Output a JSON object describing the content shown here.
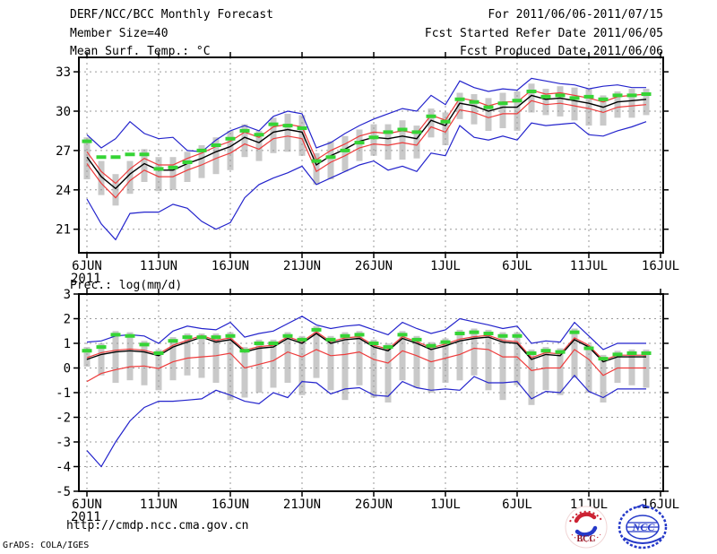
{
  "header": {
    "title": "DERF/NCC/BCC Monthly Forecast",
    "member_size": "Member Size=40",
    "temp_panel_label": "Mean Surf. Temp.: °C",
    "for_range": "For 2011/06/06-2011/07/15",
    "fcst_started": "Fcst Started Refer Date 2011/06/05",
    "fcst_produced": "Fcst Produced Date 2011/06/06",
    "prec_panel_label": "Prec.: log(mm/d)"
  },
  "footer": {
    "url": "http://cmdp.ncc.cma.gov.cn",
    "grads_credit": "GrADS: COLA/IGES",
    "bcc_logo_text": "BCC",
    "ncc_logo_text": "NCC"
  },
  "colors": {
    "envelope_blue": "#2323cc",
    "std_red": "#ee3b3b",
    "mean_black": "#000000",
    "obs_green": "#35d435",
    "spread_gray": "#c9c9c9",
    "grid_gray": "#9a9a9a",
    "axis_black": "#000000",
    "logo_red": "#cc2233",
    "logo_blue": "#2438c8"
  },
  "chart_data": [
    {
      "id": "temp",
      "type": "line",
      "title": "Mean Surf. Temp.: °C",
      "x_year_label": "2011",
      "x_tick_labels": [
        "6JUN",
        "11JUN",
        "16JUN",
        "21JUN",
        "26JUN",
        "1JUL",
        "6JUL",
        "11JUL",
        "16JUL"
      ],
      "x_tick_positions": [
        0,
        5,
        10,
        15,
        20,
        25,
        30,
        35,
        40
      ],
      "y_ticks": [
        33,
        30,
        27,
        24,
        21
      ],
      "y_grid": [
        33,
        30,
        27,
        24,
        21
      ],
      "ylim": [
        19.2,
        34.1
      ],
      "grid": true,
      "legend": "none",
      "series": [
        {
          "name": "ensemble-max",
          "color": "#2323cc",
          "style": "line",
          "values": [
            28.2,
            27.2,
            27.9,
            29.2,
            28.3,
            27.9,
            28.0,
            27.0,
            26.9,
            27.8,
            28.5,
            28.9,
            28.5,
            29.6,
            30.0,
            29.8,
            27.2,
            27.6,
            28.3,
            28.9,
            29.4,
            29.8,
            30.2,
            30.0,
            31.2,
            30.5,
            32.3,
            31.8,
            31.5,
            31.7,
            31.6,
            32.5,
            32.3,
            32.1,
            32.0,
            31.7,
            31.9,
            32.0,
            31.8,
            31.8
          ]
        },
        {
          "name": "ensemble-min",
          "color": "#2323cc",
          "style": "line",
          "values": [
            23.3,
            21.4,
            20.2,
            22.2,
            22.3,
            22.3,
            22.9,
            22.6,
            21.6,
            21.0,
            21.5,
            23.4,
            24.4,
            24.9,
            25.3,
            25.8,
            24.4,
            24.9,
            25.4,
            25.9,
            26.2,
            25.5,
            25.8,
            25.4,
            26.8,
            26.6,
            28.9,
            28.0,
            27.8,
            28.1,
            27.8,
            29.1,
            28.9,
            29.0,
            29.1,
            28.2,
            28.1,
            28.5,
            28.8,
            29.2
          ]
        },
        {
          "name": "mean-plus-std",
          "color": "#ee3b3b",
          "style": "line",
          "values": [
            26.9,
            25.4,
            24.5,
            25.6,
            26.4,
            25.9,
            25.9,
            26.4,
            26.8,
            27.3,
            27.7,
            28.4,
            28.0,
            28.8,
            29.0,
            28.8,
            26.3,
            27.0,
            27.5,
            28.1,
            28.4,
            28.3,
            28.5,
            28.3,
            29.7,
            29.3,
            31.0,
            30.8,
            30.4,
            30.7,
            30.7,
            31.6,
            31.3,
            31.4,
            31.2,
            31.0,
            30.7,
            31.1,
            31.2,
            31.3
          ]
        },
        {
          "name": "mean-minus-std",
          "color": "#ee3b3b",
          "style": "line",
          "values": [
            26.0,
            24.5,
            23.4,
            24.7,
            25.5,
            25.0,
            25.0,
            25.5,
            25.9,
            26.4,
            26.8,
            27.5,
            27.1,
            27.9,
            28.1,
            27.9,
            25.4,
            26.1,
            26.6,
            27.2,
            27.5,
            27.4,
            27.6,
            27.4,
            28.8,
            28.4,
            30.1,
            29.9,
            29.5,
            29.8,
            29.8,
            30.8,
            30.5,
            30.6,
            30.4,
            30.2,
            29.9,
            30.3,
            30.4,
            30.5
          ]
        },
        {
          "name": "ensemble-mean",
          "color": "#000000",
          "style": "line",
          "values": [
            26.5,
            25.0,
            24.1,
            25.2,
            26.0,
            25.5,
            25.5,
            26.0,
            26.4,
            26.9,
            27.3,
            28.0,
            27.6,
            28.4,
            28.6,
            28.4,
            25.9,
            26.6,
            27.1,
            27.7,
            28.0,
            27.9,
            28.1,
            27.9,
            29.3,
            28.9,
            30.6,
            30.4,
            30.0,
            30.3,
            30.3,
            31.2,
            30.9,
            31.0,
            30.8,
            30.6,
            30.3,
            30.7,
            30.8,
            30.9
          ]
        },
        {
          "name": "observation",
          "color": "#35d435",
          "style": "thick-dash",
          "values": [
            27.7,
            26.5,
            26.5,
            26.7,
            26.7,
            25.6,
            25.7,
            26.1,
            27.0,
            27.4,
            27.9,
            28.5,
            28.2,
            29.0,
            28.9,
            28.7,
            26.2,
            26.5,
            27.0,
            27.6,
            28.0,
            28.4,
            28.6,
            28.4,
            29.6,
            29.2,
            30.9,
            30.7,
            30.3,
            30.6,
            30.8,
            31.5,
            31.1,
            31.2,
            31.0,
            31.1,
            30.9,
            31.2,
            31.2,
            31.3
          ]
        }
      ],
      "spread_bars": {
        "color": "#c9c9c9",
        "top": [
          28.0,
          26.2,
          25.2,
          26.2,
          27.1,
          26.5,
          26.5,
          26.9,
          27.4,
          28.0,
          28.5,
          29.0,
          28.5,
          29.5,
          29.8,
          29.7,
          26.8,
          27.7,
          28.1,
          28.6,
          29.0,
          29.0,
          29.3,
          28.9,
          30.2,
          29.9,
          31.4,
          31.3,
          31.0,
          31.4,
          31.5,
          32.1,
          31.7,
          31.9,
          31.8,
          31.7,
          31.2,
          31.5,
          31.7,
          31.7
        ],
        "bottom": [
          24.8,
          23.6,
          22.8,
          23.7,
          24.6,
          23.9,
          24.0,
          24.6,
          24.9,
          25.2,
          25.5,
          26.5,
          26.2,
          26.8,
          26.9,
          26.6,
          24.4,
          24.8,
          25.4,
          26.2,
          26.6,
          26.3,
          26.3,
          26.4,
          28.0,
          27.4,
          29.4,
          29.0,
          28.5,
          28.7,
          28.5,
          29.9,
          29.7,
          29.6,
          29.3,
          28.9,
          28.9,
          29.5,
          29.5,
          29.7
        ]
      }
    },
    {
      "id": "prec",
      "type": "line",
      "title": "Prec.: log(mm/d)",
      "x_year_label": "2011",
      "x_tick_labels": [
        "6JUN",
        "11JUN",
        "16JUN",
        "21JUN",
        "26JUN",
        "1JUL",
        "6JUL",
        "11JUL",
        "16JUL"
      ],
      "x_tick_positions": [
        0,
        5,
        10,
        15,
        20,
        25,
        30,
        35,
        40
      ],
      "y_ticks": [
        3,
        2,
        1,
        0,
        -1,
        -2,
        -3,
        -4,
        -5
      ],
      "y_grid": [
        2,
        1,
        0,
        -1,
        -2,
        -3,
        -4
      ],
      "ylim": [
        -5,
        3
      ],
      "grid": true,
      "legend": "none",
      "series": [
        {
          "name": "ensemble-max",
          "color": "#2323cc",
          "style": "line",
          "values": [
            1.05,
            1.1,
            1.3,
            1.35,
            1.3,
            1.0,
            1.5,
            1.7,
            1.6,
            1.55,
            1.85,
            1.25,
            1.4,
            1.5,
            1.8,
            2.1,
            1.75,
            1.6,
            1.7,
            1.75,
            1.55,
            1.35,
            1.85,
            1.6,
            1.4,
            1.55,
            2.0,
            1.87,
            1.75,
            1.6,
            1.7,
            1.0,
            1.1,
            1.05,
            1.85,
            1.3,
            0.75,
            1.0,
            1.0,
            1.0
          ]
        },
        {
          "name": "ensemble-min",
          "color": "#2323cc",
          "style": "line",
          "values": [
            -3.35,
            -4.0,
            -3.0,
            -2.15,
            -1.6,
            -1.35,
            -1.35,
            -1.3,
            -1.25,
            -0.9,
            -1.1,
            -1.35,
            -1.45,
            -1.0,
            -1.2,
            -0.55,
            -0.6,
            -1.05,
            -0.85,
            -0.8,
            -1.1,
            -1.15,
            -0.55,
            -0.8,
            -0.9,
            -0.85,
            -0.9,
            -0.35,
            -0.6,
            -0.6,
            -0.55,
            -1.25,
            -0.95,
            -1.0,
            -0.3,
            -0.95,
            -1.2,
            -0.85,
            -0.85,
            -0.85
          ]
        },
        {
          "name": "mean-plus-std",
          "color": "#ee3b3b",
          "style": "line",
          "values": [
            0.42,
            0.62,
            0.72,
            0.77,
            0.72,
            0.57,
            0.92,
            1.12,
            1.32,
            1.12,
            1.22,
            0.72,
            0.87,
            0.92,
            1.27,
            1.07,
            1.47,
            1.07,
            1.22,
            1.27,
            0.92,
            0.77,
            1.27,
            1.07,
            0.82,
            0.97,
            1.17,
            1.27,
            1.32,
            1.12,
            1.07,
            0.42,
            0.62,
            0.57,
            1.22,
            0.92,
            0.32,
            0.52,
            0.52,
            0.52
          ]
        },
        {
          "name": "mean-minus-std",
          "color": "#ee3b3b",
          "style": "line",
          "values": [
            -0.55,
            -0.22,
            -0.07,
            0.05,
            0.08,
            -0.02,
            0.25,
            0.4,
            0.45,
            0.5,
            0.6,
            0.0,
            0.15,
            0.3,
            0.65,
            0.45,
            0.75,
            0.5,
            0.55,
            0.65,
            0.35,
            0.2,
            0.7,
            0.5,
            0.25,
            0.4,
            0.55,
            0.8,
            0.75,
            0.45,
            0.45,
            -0.1,
            0.0,
            0.0,
            0.75,
            0.35,
            -0.3,
            0.0,
            0.0,
            0.0
          ]
        },
        {
          "name": "ensemble-mean",
          "color": "#000000",
          "style": "line",
          "values": [
            0.35,
            0.55,
            0.65,
            0.7,
            0.65,
            0.5,
            0.85,
            1.05,
            1.25,
            1.05,
            1.15,
            0.65,
            0.8,
            0.85,
            1.2,
            1.0,
            1.4,
            1.0,
            1.15,
            1.2,
            0.85,
            0.7,
            1.2,
            1.0,
            0.75,
            0.9,
            1.1,
            1.2,
            1.25,
            1.05,
            1.0,
            0.35,
            0.55,
            0.5,
            1.15,
            0.85,
            0.25,
            0.45,
            0.45,
            0.45
          ]
        },
        {
          "name": "observation",
          "color": "#35d435",
          "style": "thick-dash",
          "values": [
            0.7,
            0.85,
            1.35,
            1.3,
            0.95,
            0.6,
            1.1,
            1.25,
            1.25,
            1.25,
            1.3,
            0.7,
            1.0,
            1.0,
            1.3,
            1.15,
            1.55,
            1.15,
            1.3,
            1.35,
            1.0,
            0.85,
            1.35,
            1.15,
            0.9,
            1.05,
            1.4,
            1.45,
            1.4,
            1.3,
            1.3,
            0.6,
            0.7,
            0.65,
            1.45,
            0.8,
            0.38,
            0.55,
            0.6,
            0.6
          ]
        }
      ],
      "spread_bars": {
        "color": "#c9c9c9",
        "top": [
          0.85,
          1.0,
          1.5,
          1.45,
          1.1,
          0.75,
          1.25,
          1.4,
          1.4,
          1.4,
          1.45,
          0.85,
          1.15,
          1.15,
          1.45,
          1.3,
          1.7,
          1.3,
          1.45,
          1.5,
          1.15,
          1.0,
          1.5,
          1.3,
          1.05,
          1.2,
          1.55,
          1.6,
          1.55,
          1.45,
          1.45,
          0.75,
          0.85,
          0.8,
          1.6,
          0.95,
          0.53,
          0.7,
          0.75,
          0.75
        ],
        "bottom": [
          0.05,
          -0.3,
          -0.6,
          -0.5,
          -0.7,
          -0.9,
          -0.5,
          -0.3,
          -0.4,
          -0.6,
          -1.3,
          -1.2,
          -1.0,
          -0.8,
          -0.6,
          -1.1,
          -0.4,
          -0.9,
          -1.3,
          -0.7,
          -1.2,
          -1.4,
          -0.5,
          -0.8,
          -1.0,
          -0.6,
          -0.5,
          -0.3,
          -0.9,
          -1.3,
          -0.7,
          -1.5,
          -0.9,
          -1.1,
          -0.4,
          -1.0,
          -1.4,
          -0.6,
          -0.7,
          -0.8
        ]
      }
    }
  ]
}
